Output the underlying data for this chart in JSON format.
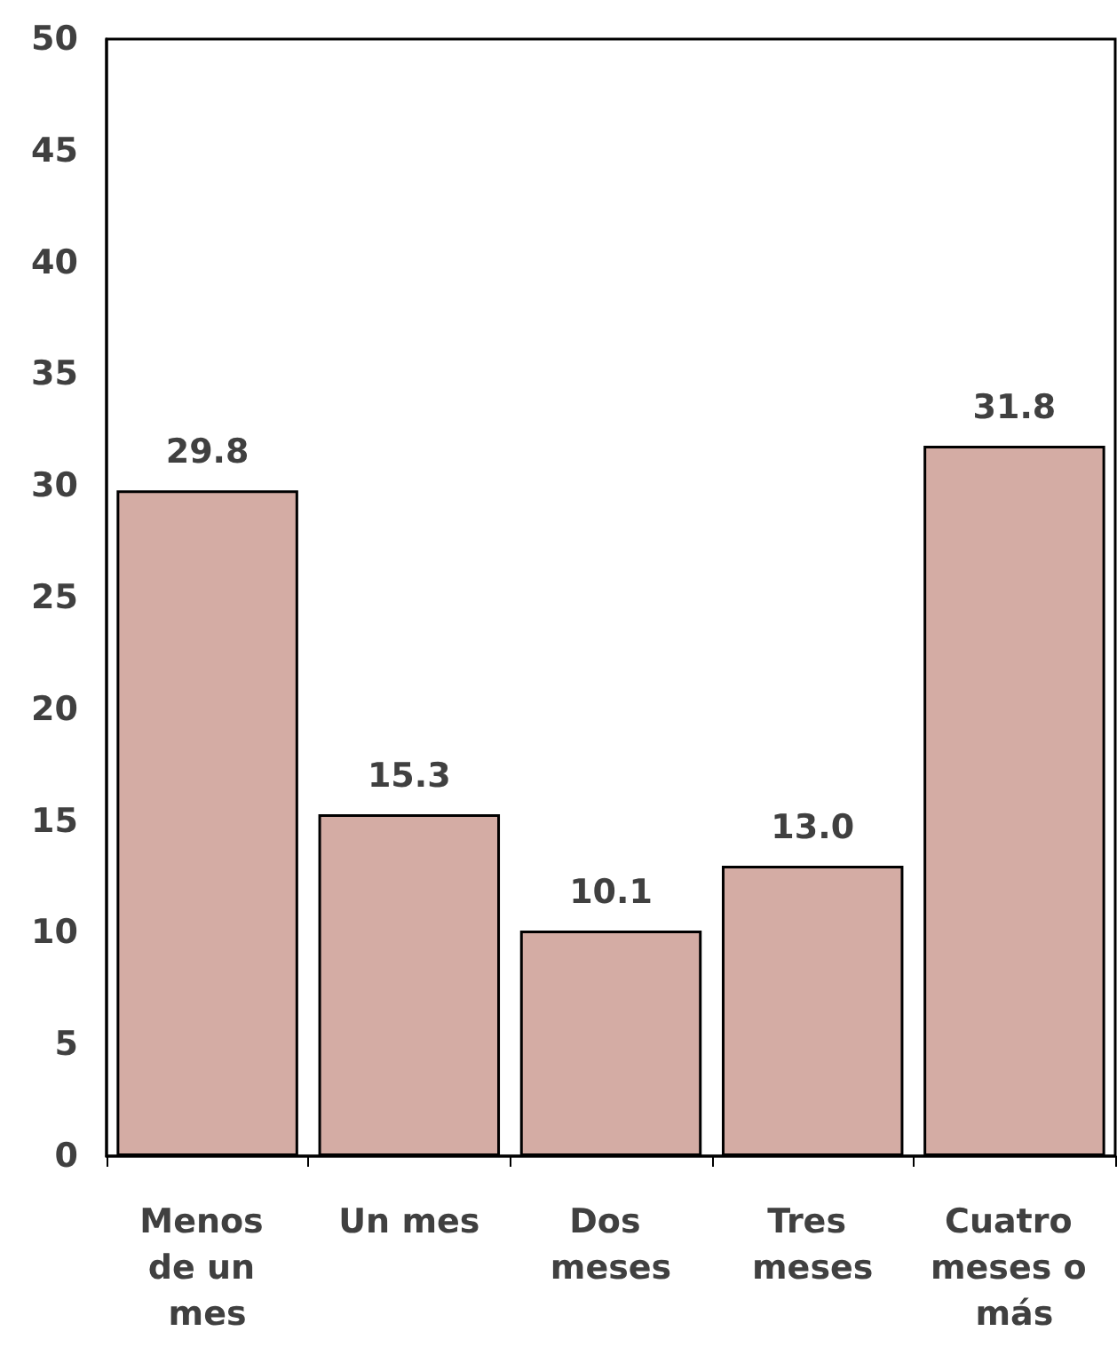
{
  "chart_data": {
    "type": "bar",
    "categories": [
      "Menos de un mes",
      "Un mes",
      "Dos meses",
      "Tres meses",
      "Cuatro meses o más"
    ],
    "values": [
      29.8,
      15.3,
      10.1,
      13.0,
      31.8
    ],
    "color": "#d4aca4",
    "ylim": [
      0,
      50
    ],
    "yticks": [
      0,
      5,
      10,
      15,
      20,
      25,
      30,
      35,
      40,
      45,
      50
    ],
    "value_labels": [
      "29.8",
      "15.3",
      "10.1",
      "13.0",
      "31.8"
    ],
    "grid": false
  }
}
